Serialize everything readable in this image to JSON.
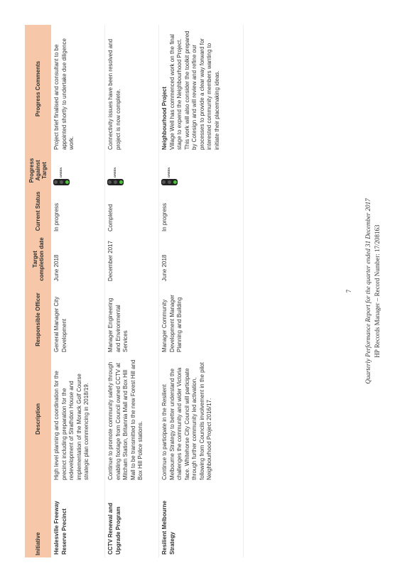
{
  "table": {
    "headers": [
      "Initiative",
      "Description",
      "Responsible Officer",
      "Target completion date",
      "Current Status",
      "Progress Against Target",
      "Progress Comments"
    ],
    "rows": [
      {
        "initiative": "Healesville Freeway Reserve Precinct",
        "description": "High level planning and coordination for the precinct including preparation for the redevelopment of Strathdon House and implementation of the Morack Golf Course strategic plan commencing in 2018/19.",
        "officer": "General Manager City Development",
        "date": "June 2018",
        "status": "In progress",
        "progress": "GREEN",
        "comment_title": null,
        "comment": "Project brief finalised and consultant to be appointed shortly to undertake due diligence work."
      },
      {
        "initiative": "CCTV Renewal and Upgrade Program",
        "description": "Continue to promote community safety through enabling footage from Council owned CCTV at Mitcham Station, Britannia Mall and Box Hill Mall to be transmitted to the new Forest Hill and Box Hill Police stations.",
        "officer": "Manager Engineering and Environmental Services",
        "date": "December 2017",
        "status": "Completed",
        "progress": "GREEN",
        "comment_title": null,
        "comment": "Connectivity issues have been resolved and project is now complete."
      },
      {
        "initiative": "Resilient Melbourne Strategy",
        "description": "Continue to participate in the Resilient Melbourne Strategy to better understand the challenges the community and wider Victoria face. Whitehorse City Council will participate through further community led activation, following from Councils involvement in the pilot Neighbourhood Project 2016/17.",
        "officer": "Manager Community Development Manager Planning and Building",
        "date": "June 2018",
        "status": "In progress",
        "progress": "GREEN",
        "comment_title": "Neighbourhood Project",
        "comment": "Village Well has commenced work on the final stage to expend the Neighbourhood Project. This work will also consider the toolkit prepared by Cotesign and will review and refine our processes to provide a clear way forward for interested community members wanting to initiate their placemaking ideas."
      }
    ]
  },
  "footer": {
    "page": "7",
    "report": "Quarterly Performance Report for the quarter ended 31 December 2017",
    "record": "HP Records Manager – Record Number: 17/208163"
  }
}
